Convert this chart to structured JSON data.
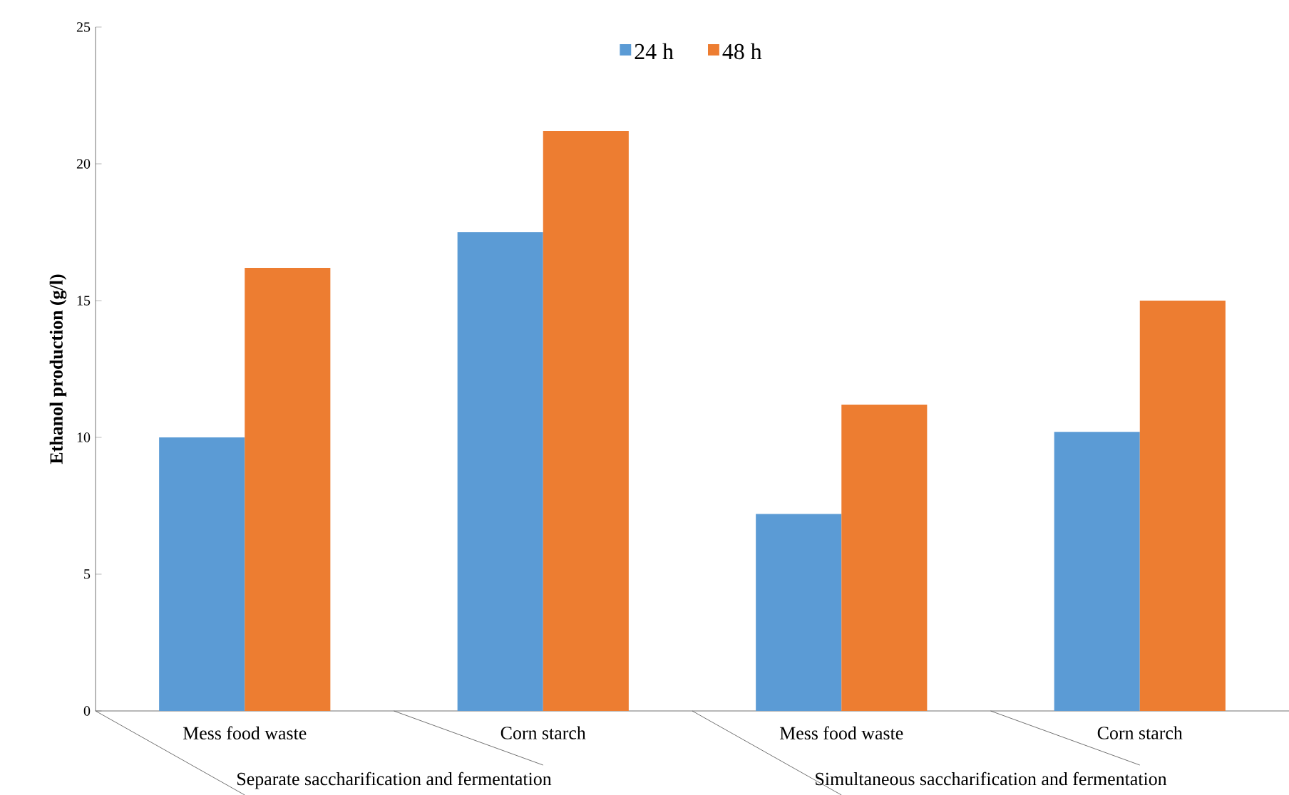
{
  "chart_data": {
    "type": "bar",
    "ylabel": "Ethanol production (g/l)",
    "categories": [
      "Mess food waste",
      "Corn starch",
      "Mess food waste",
      "Corn starch"
    ],
    "series": [
      {
        "name": "24 h",
        "color": "#5b9bd5",
        "values": [
          10.0,
          17.5,
          7.2,
          10.2
        ]
      },
      {
        "name": "48 h",
        "color": "#ed7d31",
        "values": [
          16.2,
          21.2,
          11.2,
          15.0
        ]
      }
    ],
    "annotations": [
      "Separate saccharification and fermentation",
      "Simultaneous saccharification and fermentation"
    ],
    "ylim": [
      0,
      25
    ],
    "yticks": [
      0,
      5,
      10,
      15,
      20,
      25
    ],
    "legend": "top"
  }
}
